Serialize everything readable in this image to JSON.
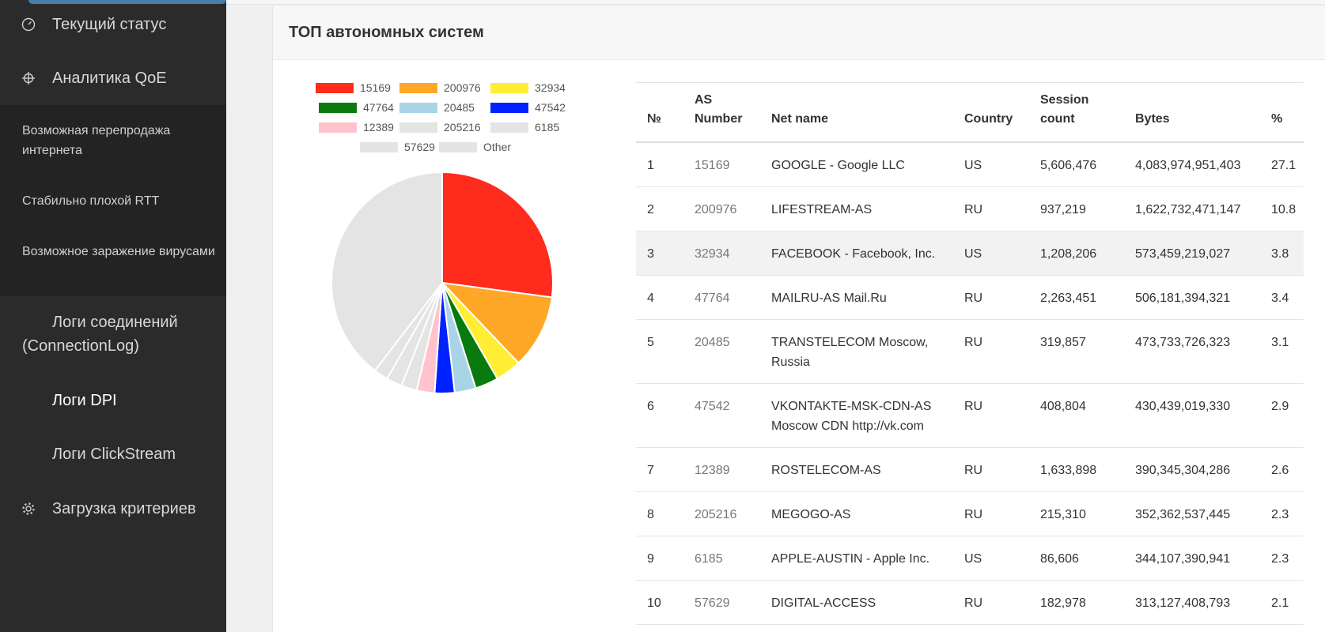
{
  "sidebar": {
    "items": [
      {
        "label": "Текущий статус",
        "icon": "gauge-icon"
      },
      {
        "label": "Аналитика QoE",
        "icon": "crosshair-icon"
      }
    ],
    "sub_items": [
      {
        "label": "Возможная перепродажа интернета"
      },
      {
        "label": "Стабильно плохой RTT"
      },
      {
        "label": "Возможное заражение вирусами"
      }
    ],
    "logs": [
      {
        "label": "Логи соединений (ConnectionLog)"
      },
      {
        "label": "Логи DPI"
      },
      {
        "label": "Логи ClickStream"
      }
    ],
    "criteria": {
      "label": "Загрузка критериев",
      "icon": "gear-icon"
    }
  },
  "card": {
    "title": "ТОП автономных систем"
  },
  "legend": [
    {
      "label": "15169",
      "color": "#ff2b1c"
    },
    {
      "label": "200976",
      "color": "#ffa726"
    },
    {
      "label": "32934",
      "color": "#ffee33"
    },
    {
      "label": "47764",
      "color": "#087a0e"
    },
    {
      "label": "20485",
      "color": "#a9d4e6"
    },
    {
      "label": "47542",
      "color": "#0022ff"
    },
    {
      "label": "12389",
      "color": "#ffc3cc"
    },
    {
      "label": "205216",
      "color": "#e4e4e4"
    },
    {
      "label": "6185",
      "color": "#e4e4e4"
    },
    {
      "label": "57629",
      "color": "#e4e4e4"
    },
    {
      "label": "Other",
      "color": "#e4e4e4"
    }
  ],
  "chart_data": {
    "type": "pie",
    "categories": [
      "15169",
      "200976",
      "32934",
      "47764",
      "20485",
      "47542",
      "12389",
      "205216",
      "6185",
      "57629",
      "Other"
    ],
    "values": [
      27.1,
      10.8,
      3.8,
      3.4,
      3.1,
      2.9,
      2.6,
      2.3,
      2.3,
      2.1,
      39.6
    ],
    "colors": [
      "#ff2b1c",
      "#ffa726",
      "#ffee33",
      "#087a0e",
      "#a9d4e6",
      "#0022ff",
      "#ffc3cc",
      "#e4e4e4",
      "#e4e4e4",
      "#e4e4e4",
      "#e4e4e4"
    ],
    "legend": "top"
  },
  "table": {
    "headers": [
      "№",
      "AS Number",
      "Net name",
      "Country",
      "Session count",
      "Bytes",
      "%"
    ],
    "rows": [
      [
        "1",
        "15169",
        "GOOGLE - Google LLC",
        "US",
        "5,606,476",
        "4,083,974,951,403",
        "27.1"
      ],
      [
        "2",
        "200976",
        "LIFESTREAM-AS",
        "RU",
        "937,219",
        "1,622,732,471,147",
        "10.8"
      ],
      [
        "3",
        "32934",
        "FACEBOOK - Facebook, Inc.",
        "US",
        "1,208,206",
        "573,459,219,027",
        "3.8"
      ],
      [
        "4",
        "47764",
        "MAILRU-AS Mail.Ru",
        "RU",
        "2,263,451",
        "506,181,394,321",
        "3.4"
      ],
      [
        "5",
        "20485",
        "TRANSTELECOM Moscow, Russia",
        "RU",
        "319,857",
        "473,733,726,323",
        "3.1"
      ],
      [
        "6",
        "47542",
        "VKONTAKTE-MSK-CDN-AS Moscow CDN http://vk.com",
        "RU",
        "408,804",
        "430,439,019,330",
        "2.9"
      ],
      [
        "7",
        "12389",
        "ROSTELECOM-AS",
        "RU",
        "1,633,898",
        "390,345,304,286",
        "2.6"
      ],
      [
        "8",
        "205216",
        "MEGOGO-AS",
        "RU",
        "215,310",
        "352,362,537,445",
        "2.3"
      ],
      [
        "9",
        "6185",
        "APPLE-AUSTIN - Apple Inc.",
        "US",
        "86,606",
        "344,107,390,941",
        "2.3"
      ],
      [
        "10",
        "57629",
        "DIGITAL-ACCESS",
        "RU",
        "182,978",
        "313,127,408,793",
        "2.1"
      ]
    ]
  }
}
